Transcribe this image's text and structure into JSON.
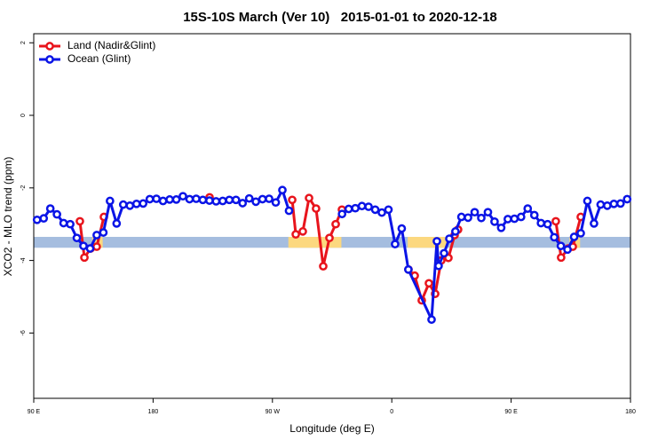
{
  "chart_data": {
    "type": "line",
    "title": "15S-10S March (Ver 10)   2015-01-01 to 2020-12-18",
    "xlabel": "Longitude (deg E)",
    "ylabel": "XCO2 - MLO trend (ppm)",
    "xlim": [
      90,
      540
    ],
    "xticks": [
      {
        "value": 90,
        "label": "90 E"
      },
      {
        "value": 180,
        "label": "180"
      },
      {
        "value": 270,
        "label": "90 W"
      },
      {
        "value": 360,
        "label": "0"
      },
      {
        "value": 450,
        "label": "90 E"
      },
      {
        "value": 540,
        "label": "180"
      }
    ],
    "ylim": [
      -7.8,
      2.25
    ],
    "yticks": [
      2,
      0,
      -2,
      -4,
      -6
    ],
    "legend": "top-left",
    "band": {
      "ylim": [
        -3.65,
        -3.35
      ],
      "ocean_color": "#a5bddf",
      "land_color": "#fcd87f",
      "land_x": [
        [
          134,
          142
        ],
        [
          282,
          322
        ],
        [
          372,
          402
        ],
        [
          494,
          502
        ]
      ]
    },
    "series": [
      {
        "name": "Land (Nadir&Glint)",
        "color": "#e8141c",
        "x": [
          124.8,
          128.2,
          132.9,
          137.5,
          142.9,
          180,
          222.6,
          250,
          284.9,
          287.6,
          292.9,
          297.6,
          302.9,
          308.3,
          313,
          317.7,
          322.4,
          350,
          372.6,
          377.3,
          382.6,
          388,
          392.7,
          397.3,
          402.7,
          407.4,
          410,
          450,
          483.7,
          487.7,
          493.1,
          496.5,
          502.5
        ],
        "values": [
          -2.92,
          -3.92,
          -3.67,
          -3.62,
          -2.8,
          null,
          -2.26,
          null,
          -2.33,
          -3.28,
          -3.2,
          -2.28,
          -2.57,
          -4.16,
          -3.38,
          -3.0,
          -2.6,
          null,
          -4.25,
          -4.42,
          -5.1,
          -4.63,
          -4.92,
          -4.0,
          -3.93,
          -3.3,
          -3.15,
          null,
          -2.92,
          -3.92,
          -3.67,
          -3.62,
          -2.8
        ]
      },
      {
        "name": "Ocean (Glint)",
        "color": "#0a14e6",
        "x": [
          92.5,
          97.5,
          102.5,
          107.5,
          112.5,
          117.5,
          122.5,
          127.5,
          132.5,
          137.5,
          142.5,
          147.5,
          152.5,
          157.5,
          162.5,
          167.5,
          172.5,
          177.5,
          182.5,
          187.5,
          192.5,
          197.5,
          202.5,
          207.5,
          212.5,
          217.5,
          222.5,
          227.5,
          232.5,
          237.5,
          242.5,
          247.5,
          252.5,
          257.5,
          262.5,
          267.5,
          272.5,
          277.5,
          282.5,
          300,
          322.5,
          327.5,
          332.5,
          337.5,
          342.5,
          347.5,
          352.5,
          357.5,
          362.5,
          367.5,
          372.5,
          390,
          394,
          395.3,
          399.4,
          403.4,
          408,
          412.5,
          417.5,
          422.5,
          427.5,
          432.5,
          437.5,
          442.5,
          447.5,
          452.5,
          457.5,
          462.5,
          467.5,
          472.5,
          477.5,
          482.5,
          487.5,
          492.5,
          497.5,
          502.5,
          507.5,
          512.5,
          517.5,
          522.5,
          527.5,
          532.5,
          537.5
        ],
        "values": [
          -2.88,
          -2.84,
          -2.57,
          -2.73,
          -2.97,
          -3.0,
          -3.38,
          -3.6,
          -3.67,
          -3.3,
          -3.23,
          -2.36,
          -2.98,
          -2.46,
          -2.49,
          -2.44,
          -2.43,
          -2.31,
          -2.3,
          -2.36,
          -2.32,
          -2.32,
          -2.23,
          -2.31,
          -2.3,
          -2.33,
          -2.35,
          -2.37,
          -2.36,
          -2.33,
          -2.33,
          -2.42,
          -2.29,
          -2.38,
          -2.31,
          -2.3,
          -2.4,
          -2.06,
          -2.63,
          null,
          -2.72,
          -2.58,
          -2.56,
          -2.5,
          -2.52,
          -2.6,
          -2.68,
          -2.6,
          -3.55,
          -3.12,
          -4.25,
          -5.63,
          -3.47,
          -4.15,
          -3.8,
          -3.4,
          -3.2,
          -2.8,
          -2.82,
          -2.67,
          -2.83,
          -2.67,
          -2.93,
          -3.1,
          -2.86,
          -2.85,
          -2.8,
          -2.57,
          -2.75,
          -2.97,
          -3.0,
          -3.36,
          -3.6,
          -3.7,
          -3.35,
          -3.25,
          -2.36,
          -2.98,
          -2.46,
          -2.49,
          -2.44,
          -2.43,
          -2.31
        ]
      }
    ]
  }
}
